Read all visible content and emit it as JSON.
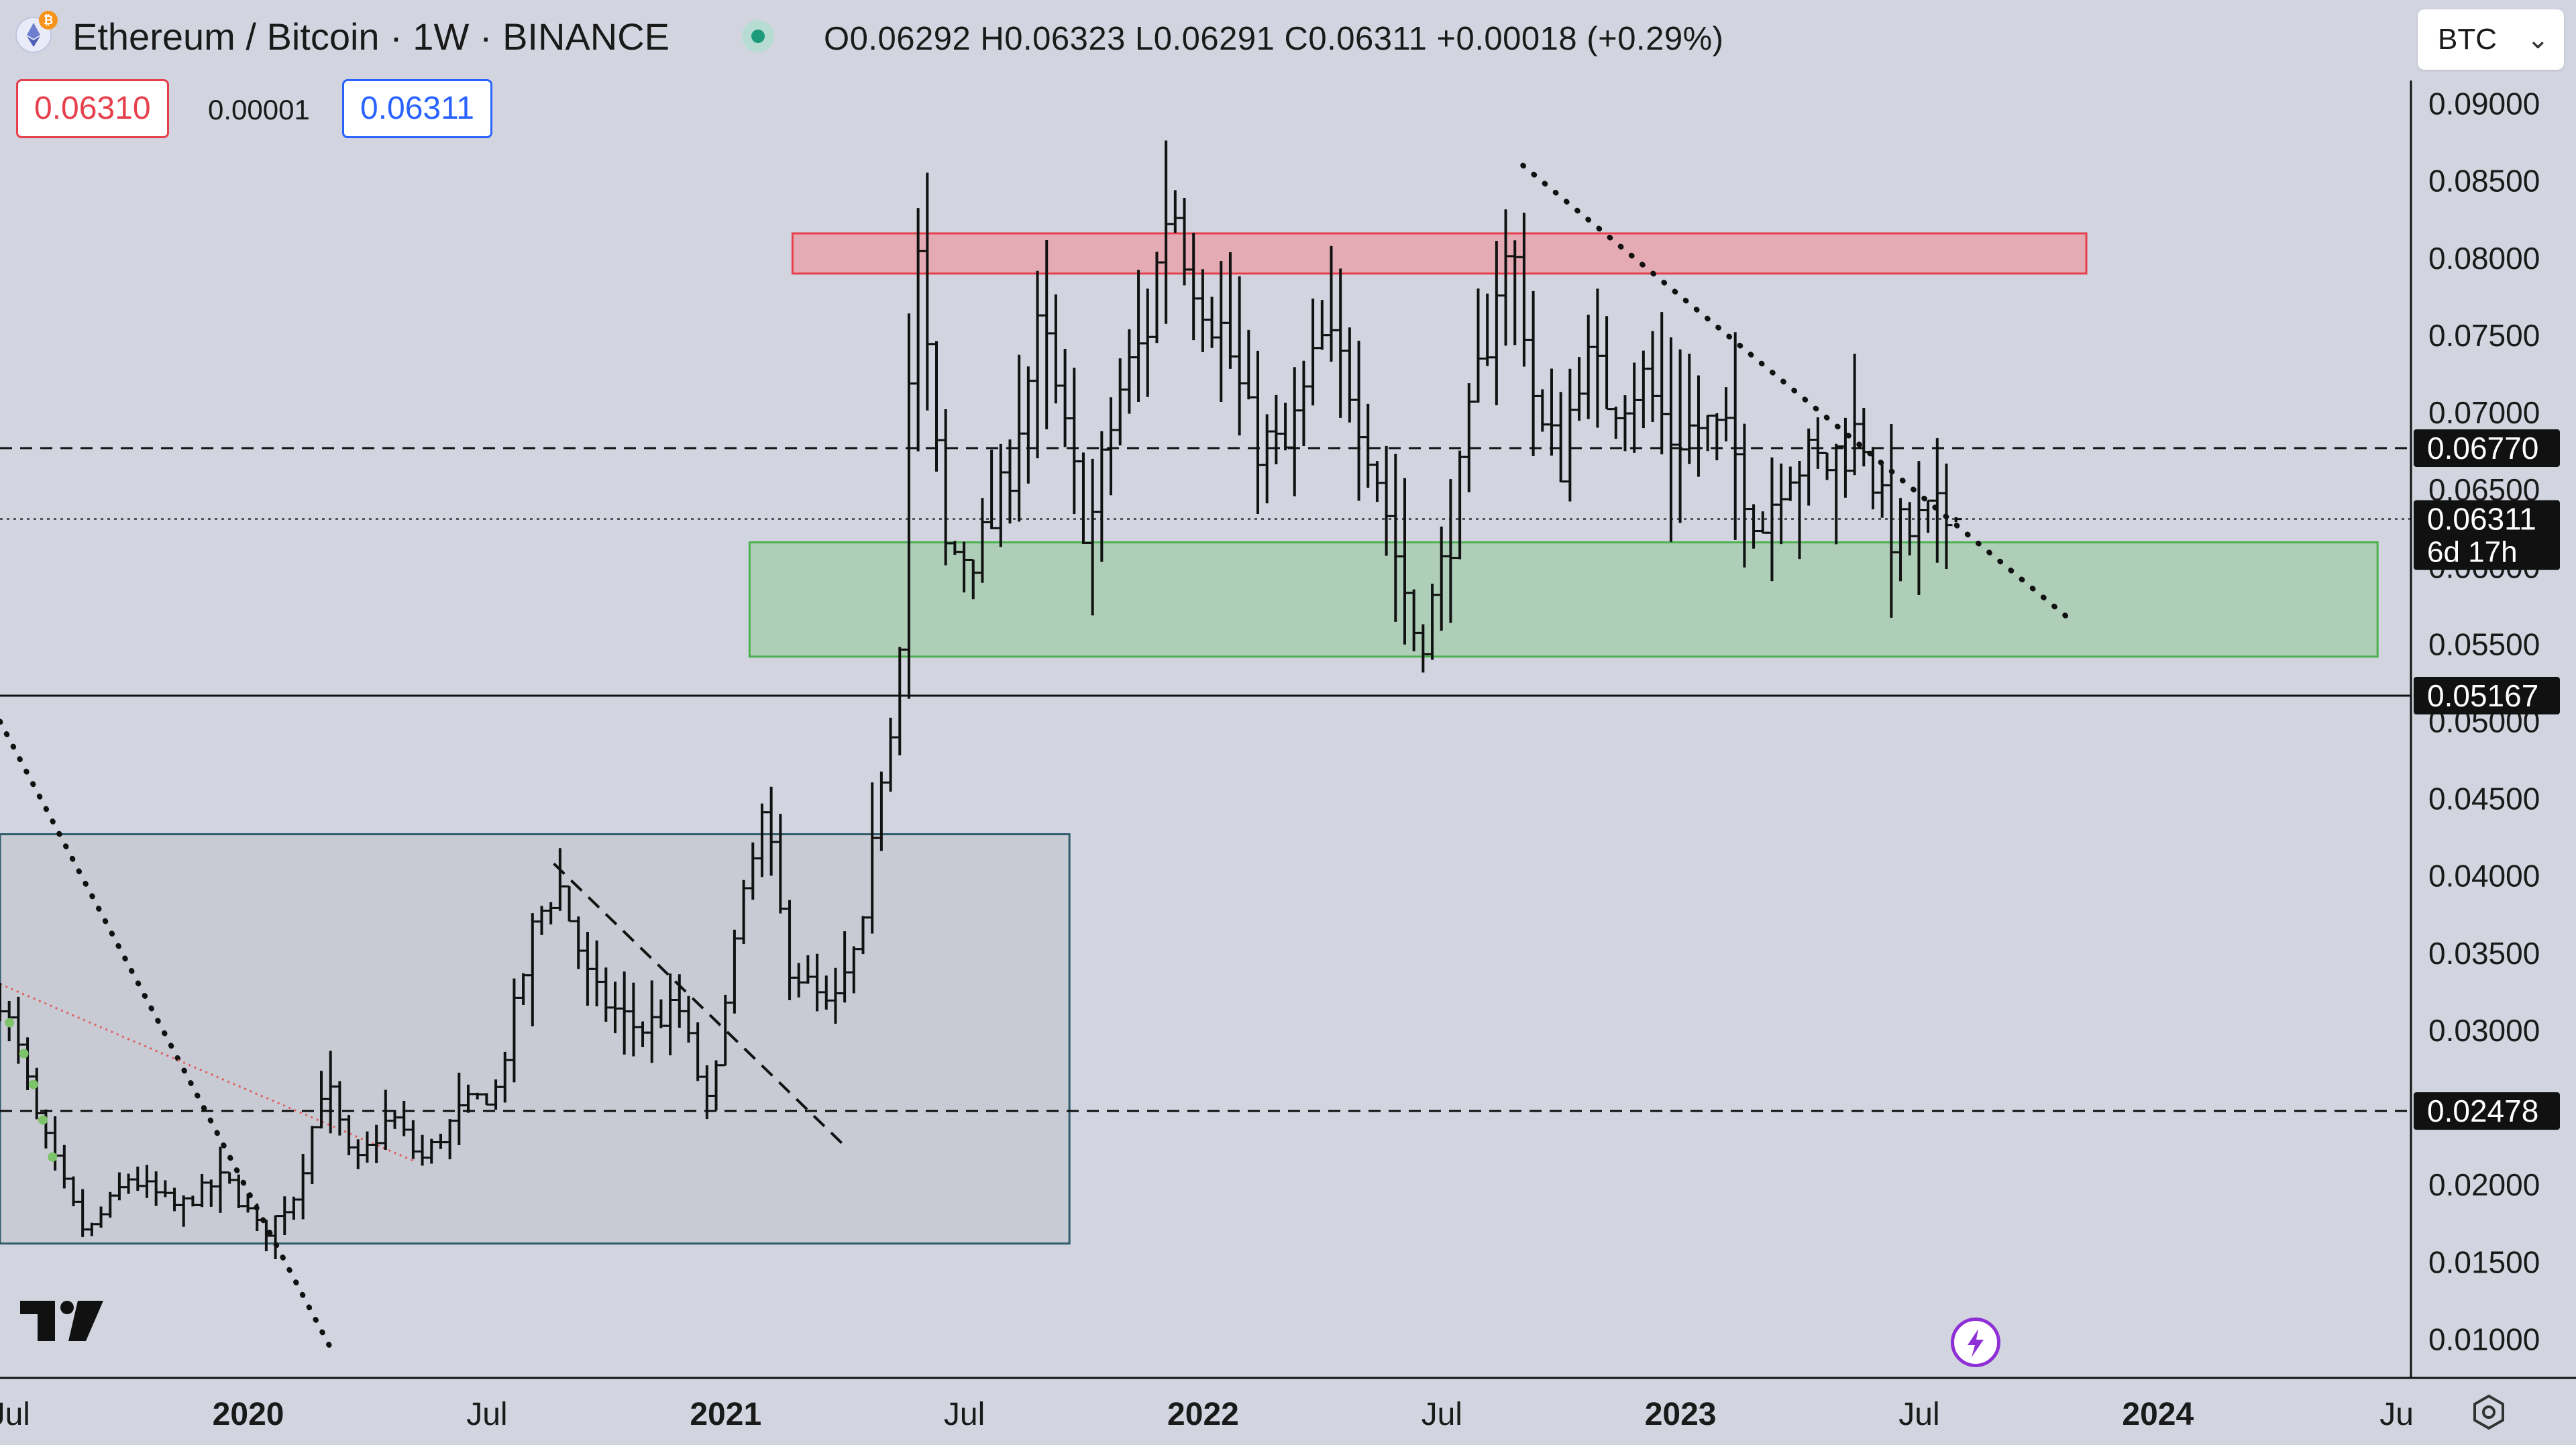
{
  "header": {
    "symbol_title": "Ethereum / Bitcoin · 1W · BINANCE",
    "ohlc_text": "O0.06292  H0.06323  L0.06291  C0.06311  +0.00018 (+0.29%)",
    "sell_price": "0.06310",
    "spread": "0.00001",
    "buy_price": "0.06311",
    "currency_select": "BTC"
  },
  "colors": {
    "background": "#d2d5df",
    "resistance_zone": "#e7a3ad",
    "support_zone": "#a9ccb0",
    "accumulation_box": "#c6cad3"
  },
  "chart_data": {
    "type": "ohlc",
    "title": "Ethereum / Bitcoin · 1W · BINANCE",
    "y_axis": {
      "ticks": [
        "0.01000",
        "0.01500",
        "0.02000",
        "0.02500",
        "0.03000",
        "0.03500",
        "0.04000",
        "0.04500",
        "0.05000",
        "0.05500",
        "0.06000",
        "0.06500",
        "0.07000",
        "0.07500",
        "0.08000",
        "0.08500",
        "0.09000"
      ],
      "ylim": [
        0.0075,
        0.0915
      ]
    },
    "x_axis": {
      "ticks": [
        {
          "label": "Jul",
          "t": 2019.5,
          "bold": false
        },
        {
          "label": "2020",
          "t": 2020.0,
          "bold": true
        },
        {
          "label": "Jul",
          "t": 2020.5,
          "bold": false
        },
        {
          "label": "2021",
          "t": 2021.0,
          "bold": true
        },
        {
          "label": "Jul",
          "t": 2021.5,
          "bold": false
        },
        {
          "label": "2022",
          "t": 2022.0,
          "bold": true
        },
        {
          "label": "Jul",
          "t": 2022.5,
          "bold": false
        },
        {
          "label": "2023",
          "t": 2023.0,
          "bold": true
        },
        {
          "label": "Jul",
          "t": 2023.5,
          "bold": false
        },
        {
          "label": "2024",
          "t": 2024.0,
          "bold": true
        },
        {
          "label": "Ju",
          "t": 2024.5,
          "bold": false
        }
      ],
      "xlim": [
        2019.48,
        2024.53
      ]
    },
    "price_labels": [
      {
        "value": 0.0677,
        "text": "0.06770",
        "style": "dashed"
      },
      {
        "value": 0.06311,
        "text": "0.06311",
        "sub": "6d 17h",
        "style": "dotted"
      },
      {
        "value": 0.05167,
        "text": "0.05167",
        "style": "solid"
      },
      {
        "value": 0.02478,
        "text": "0.02478",
        "style": "dashed"
      }
    ],
    "zones": [
      {
        "name": "resistance",
        "t0": 2021.14,
        "t1": 2023.85,
        "y_low": 0.079,
        "y_high": 0.0816
      },
      {
        "name": "support",
        "t0": 2021.05,
        "t1": 2024.46,
        "y_low": 0.0542,
        "y_high": 0.0616
      },
      {
        "name": "accumulation-range",
        "t0": 2019.48,
        "t1": 2021.72,
        "y_low": 0.0162,
        "y_high": 0.0427
      }
    ],
    "trendlines": [
      {
        "name": "descending-dotted-2022",
        "style": "dotted",
        "t0": 2022.67,
        "y0": 0.086,
        "t1": 2023.82,
        "y1": 0.0565
      },
      {
        "name": "descending-dotted-2019",
        "style": "dotted",
        "t0": 2019.48,
        "y0": 0.05,
        "t1": 2020.18,
        "y1": 0.009
      },
      {
        "name": "descending-dashed-2020",
        "style": "dashed",
        "t0": 2020.64,
        "y0": 0.0408,
        "t1": 2021.25,
        "y1": 0.0225
      },
      {
        "name": "red-moving-average",
        "style": "dotted-red",
        "t0": 2019.48,
        "y0": 0.033,
        "t1": 2020.35,
        "y1": 0.0215
      }
    ],
    "swing_path": [
      [
        2019.48,
        0.0322
      ],
      [
        2019.52,
        0.0285
      ],
      [
        2019.56,
        0.024
      ],
      [
        2019.62,
        0.0195
      ],
      [
        2019.66,
        0.0167
      ],
      [
        2019.75,
        0.0205
      ],
      [
        2019.85,
        0.0185
      ],
      [
        2019.95,
        0.0205
      ],
      [
        2020.03,
        0.0168
      ],
      [
        2020.1,
        0.0195
      ],
      [
        2020.16,
        0.027
      ],
      [
        2020.22,
        0.021
      ],
      [
        2020.3,
        0.0245
      ],
      [
        2020.36,
        0.0215
      ],
      [
        2020.45,
        0.025
      ],
      [
        2020.52,
        0.0262
      ],
      [
        2020.6,
        0.037
      ],
      [
        2020.65,
        0.0395
      ],
      [
        2020.72,
        0.0325
      ],
      [
        2020.82,
        0.03
      ],
      [
        2020.9,
        0.0315
      ],
      [
        2020.97,
        0.0242
      ],
      [
        2021.0,
        0.033
      ],
      [
        2021.08,
        0.044
      ],
      [
        2021.13,
        0.0345
      ],
      [
        2021.22,
        0.031
      ],
      [
        2021.29,
        0.0365
      ],
      [
        2021.33,
        0.048
      ],
      [
        2021.36,
        0.052
      ],
      [
        2021.38,
        0.07
      ],
      [
        2021.4,
        0.0805
      ],
      [
        2021.46,
        0.061
      ],
      [
        2021.53,
        0.061
      ],
      [
        2021.58,
        0.0645
      ],
      [
        2021.62,
        0.0705
      ],
      [
        2021.66,
        0.0755
      ],
      [
        2021.72,
        0.0668
      ],
      [
        2021.76,
        0.062
      ],
      [
        2021.82,
        0.071
      ],
      [
        2021.88,
        0.075
      ],
      [
        2021.93,
        0.0845
      ],
      [
        2021.96,
        0.081
      ],
      [
        2021.99,
        0.0785
      ],
      [
        2022.05,
        0.0745
      ],
      [
        2022.1,
        0.0685
      ],
      [
        2022.17,
        0.0672
      ],
      [
        2022.25,
        0.0745
      ],
      [
        2022.31,
        0.072
      ],
      [
        2022.36,
        0.0668
      ],
      [
        2022.41,
        0.06
      ],
      [
        2022.45,
        0.055
      ],
      [
        2022.49,
        0.0585
      ],
      [
        2022.53,
        0.064
      ],
      [
        2022.57,
        0.071
      ],
      [
        2022.62,
        0.0795
      ],
      [
        2022.66,
        0.0795
      ],
      [
        2022.7,
        0.069
      ],
      [
        2022.75,
        0.067
      ],
      [
        2022.79,
        0.0735
      ],
      [
        2022.85,
        0.071
      ],
      [
        2022.92,
        0.0722
      ],
      [
        2022.98,
        0.0685
      ],
      [
        2023.05,
        0.0692
      ],
      [
        2023.11,
        0.0675
      ],
      [
        2023.17,
        0.0625
      ],
      [
        2023.22,
        0.067
      ],
      [
        2023.3,
        0.0665
      ],
      [
        2023.38,
        0.069
      ],
      [
        2023.43,
        0.0625
      ],
      [
        2023.47,
        0.062
      ],
      [
        2023.52,
        0.063
      ],
      [
        2023.56,
        0.0631
      ]
    ]
  }
}
